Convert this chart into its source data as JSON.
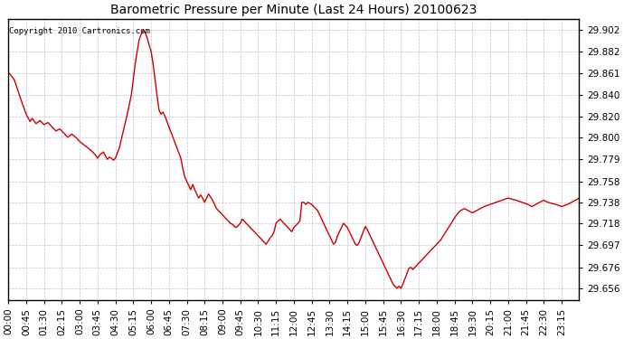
{
  "title": "Barometric Pressure per Minute (Last 24 Hours) 20100623",
  "copyright": "Copyright 2010 Cartronics.com",
  "line_color": "#cc0000",
  "background_color": "#ffffff",
  "grid_color": "#aaaaaa",
  "yticks": [
    29.656,
    29.676,
    29.697,
    29.718,
    29.738,
    29.758,
    29.779,
    29.8,
    29.82,
    29.84,
    29.861,
    29.882,
    29.902
  ],
  "xtick_labels": [
    "00:00",
    "00:45",
    "01:30",
    "02:15",
    "03:00",
    "03:45",
    "04:30",
    "05:15",
    "06:00",
    "06:45",
    "07:30",
    "08:15",
    "09:00",
    "09:45",
    "10:30",
    "11:15",
    "12:00",
    "12:45",
    "13:30",
    "14:15",
    "15:00",
    "15:45",
    "16:30",
    "17:15",
    "18:00",
    "18:45",
    "19:30",
    "20:15",
    "21:00",
    "21:45",
    "22:30",
    "23:15"
  ],
  "ymin": 29.645,
  "ymax": 29.913,
  "xmin": 0,
  "xmax": 1439,
  "curve": [
    [
      0,
      29.862
    ],
    [
      15,
      29.855
    ],
    [
      30,
      29.838
    ],
    [
      45,
      29.822
    ],
    [
      55,
      29.815
    ],
    [
      60,
      29.818
    ],
    [
      70,
      29.813
    ],
    [
      80,
      29.816
    ],
    [
      90,
      29.812
    ],
    [
      100,
      29.814
    ],
    [
      110,
      29.81
    ],
    [
      120,
      29.806
    ],
    [
      130,
      29.808
    ],
    [
      140,
      29.804
    ],
    [
      150,
      29.8
    ],
    [
      160,
      29.803
    ],
    [
      170,
      29.8
    ],
    [
      180,
      29.796
    ],
    [
      190,
      29.793
    ],
    [
      200,
      29.79
    ],
    [
      210,
      29.787
    ],
    [
      220,
      29.783
    ],
    [
      225,
      29.78
    ],
    [
      230,
      29.783
    ],
    [
      240,
      29.786
    ],
    [
      245,
      29.782
    ],
    [
      250,
      29.779
    ],
    [
      255,
      29.781
    ],
    [
      260,
      29.78
    ],
    [
      265,
      29.778
    ],
    [
      270,
      29.78
    ],
    [
      280,
      29.79
    ],
    [
      290,
      29.806
    ],
    [
      300,
      29.822
    ],
    [
      310,
      29.84
    ],
    [
      315,
      29.855
    ],
    [
      320,
      29.87
    ],
    [
      325,
      29.882
    ],
    [
      330,
      29.893
    ],
    [
      335,
      29.898
    ],
    [
      340,
      29.902
    ],
    [
      345,
      29.9
    ],
    [
      350,
      29.895
    ],
    [
      355,
      29.888
    ],
    [
      360,
      29.882
    ],
    [
      365,
      29.87
    ],
    [
      370,
      29.855
    ],
    [
      375,
      29.84
    ],
    [
      380,
      29.826
    ],
    [
      385,
      29.822
    ],
    [
      390,
      29.824
    ],
    [
      395,
      29.82
    ],
    [
      400,
      29.815
    ],
    [
      405,
      29.81
    ],
    [
      415,
      29.8
    ],
    [
      425,
      29.79
    ],
    [
      435,
      29.78
    ],
    [
      440,
      29.77
    ],
    [
      445,
      29.762
    ],
    [
      450,
      29.758
    ],
    [
      455,
      29.754
    ],
    [
      460,
      29.75
    ],
    [
      465,
      29.755
    ],
    [
      470,
      29.75
    ],
    [
      475,
      29.746
    ],
    [
      480,
      29.742
    ],
    [
      485,
      29.745
    ],
    [
      490,
      29.742
    ],
    [
      495,
      29.738
    ],
    [
      500,
      29.742
    ],
    [
      505,
      29.746
    ],
    [
      510,
      29.743
    ],
    [
      515,
      29.74
    ],
    [
      520,
      29.736
    ],
    [
      525,
      29.732
    ],
    [
      530,
      29.73
    ],
    [
      535,
      29.728
    ],
    [
      540,
      29.726
    ],
    [
      545,
      29.724
    ],
    [
      550,
      29.722
    ],
    [
      555,
      29.72
    ],
    [
      560,
      29.718
    ],
    [
      565,
      29.717
    ],
    [
      570,
      29.715
    ],
    [
      575,
      29.714
    ],
    [
      580,
      29.716
    ],
    [
      585,
      29.718
    ],
    [
      590,
      29.722
    ],
    [
      595,
      29.72
    ],
    [
      600,
      29.718
    ],
    [
      605,
      29.716
    ],
    [
      610,
      29.714
    ],
    [
      615,
      29.712
    ],
    [
      620,
      29.71
    ],
    [
      625,
      29.708
    ],
    [
      630,
      29.706
    ],
    [
      635,
      29.704
    ],
    [
      640,
      29.702
    ],
    [
      645,
      29.7
    ],
    [
      650,
      29.698
    ],
    [
      660,
      29.704
    ],
    [
      665,
      29.706
    ],
    [
      670,
      29.71
    ],
    [
      675,
      29.718
    ],
    [
      680,
      29.72
    ],
    [
      685,
      29.722
    ],
    [
      690,
      29.72
    ],
    [
      695,
      29.718
    ],
    [
      700,
      29.716
    ],
    [
      705,
      29.714
    ],
    [
      710,
      29.712
    ],
    [
      715,
      29.71
    ],
    [
      720,
      29.714
    ],
    [
      725,
      29.716
    ],
    [
      730,
      29.718
    ],
    [
      735,
      29.72
    ],
    [
      740,
      29.738
    ],
    [
      745,
      29.738
    ],
    [
      750,
      29.736
    ],
    [
      755,
      29.738
    ],
    [
      760,
      29.737
    ],
    [
      765,
      29.736
    ],
    [
      770,
      29.734
    ],
    [
      775,
      29.732
    ],
    [
      780,
      29.73
    ],
    [
      785,
      29.726
    ],
    [
      790,
      29.722
    ],
    [
      795,
      29.718
    ],
    [
      800,
      29.714
    ],
    [
      805,
      29.71
    ],
    [
      810,
      29.706
    ],
    [
      815,
      29.702
    ],
    [
      820,
      29.698
    ],
    [
      825,
      29.7
    ],
    [
      830,
      29.706
    ],
    [
      835,
      29.71
    ],
    [
      840,
      29.714
    ],
    [
      845,
      29.718
    ],
    [
      850,
      29.716
    ],
    [
      855,
      29.714
    ],
    [
      860,
      29.71
    ],
    [
      865,
      29.706
    ],
    [
      870,
      29.702
    ],
    [
      875,
      29.698
    ],
    [
      880,
      29.697
    ],
    [
      885,
      29.7
    ],
    [
      890,
      29.705
    ],
    [
      895,
      29.71
    ],
    [
      900,
      29.715
    ],
    [
      905,
      29.712
    ],
    [
      910,
      29.708
    ],
    [
      915,
      29.704
    ],
    [
      920,
      29.7
    ],
    [
      925,
      29.696
    ],
    [
      930,
      29.692
    ],
    [
      935,
      29.688
    ],
    [
      940,
      29.684
    ],
    [
      945,
      29.68
    ],
    [
      950,
      29.676
    ],
    [
      955,
      29.672
    ],
    [
      960,
      29.668
    ],
    [
      965,
      29.664
    ],
    [
      970,
      29.66
    ],
    [
      975,
      29.658
    ],
    [
      980,
      29.656
    ],
    [
      985,
      29.658
    ],
    [
      990,
      29.656
    ],
    [
      995,
      29.66
    ],
    [
      1000,
      29.665
    ],
    [
      1005,
      29.67
    ],
    [
      1010,
      29.675
    ],
    [
      1015,
      29.676
    ],
    [
      1020,
      29.674
    ],
    [
      1025,
      29.676
    ],
    [
      1030,
      29.678
    ],
    [
      1035,
      29.68
    ],
    [
      1040,
      29.682
    ],
    [
      1045,
      29.684
    ],
    [
      1050,
      29.686
    ],
    [
      1055,
      29.688
    ],
    [
      1060,
      29.69
    ],
    [
      1065,
      29.692
    ],
    [
      1070,
      29.694
    ],
    [
      1075,
      29.696
    ],
    [
      1080,
      29.698
    ],
    [
      1085,
      29.7
    ],
    [
      1090,
      29.702
    ],
    [
      1095,
      29.705
    ],
    [
      1100,
      29.708
    ],
    [
      1110,
      29.714
    ],
    [
      1120,
      29.72
    ],
    [
      1130,
      29.726
    ],
    [
      1140,
      29.73
    ],
    [
      1150,
      29.732
    ],
    [
      1160,
      29.73
    ],
    [
      1170,
      29.728
    ],
    [
      1180,
      29.73
    ],
    [
      1190,
      29.732
    ],
    [
      1200,
      29.734
    ],
    [
      1215,
      29.736
    ],
    [
      1230,
      29.738
    ],
    [
      1245,
      29.74
    ],
    [
      1260,
      29.742
    ],
    [
      1280,
      29.74
    ],
    [
      1295,
      29.738
    ],
    [
      1310,
      29.736
    ],
    [
      1320,
      29.734
    ],
    [
      1330,
      29.736
    ],
    [
      1340,
      29.738
    ],
    [
      1350,
      29.74
    ],
    [
      1360,
      29.738
    ],
    [
      1380,
      29.736
    ],
    [
      1395,
      29.734
    ],
    [
      1410,
      29.736
    ],
    [
      1420,
      29.738
    ],
    [
      1430,
      29.74
    ],
    [
      1439,
      29.742
    ]
  ]
}
